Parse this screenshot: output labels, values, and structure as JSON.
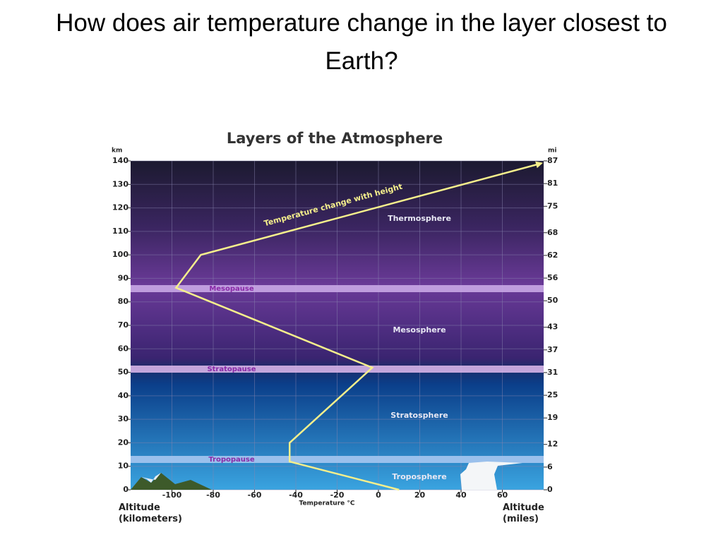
{
  "slide_title": "How does air temperature change in the layer closest to Earth?",
  "chart_data": {
    "type": "line",
    "title": "Layers of the Atmosphere",
    "x_label": "Temperature °C",
    "y_label": "Altitude (kilometers)",
    "y2_label": "Altitude (miles)",
    "y_unit": "km",
    "y2_unit": "mi",
    "x": [
      10,
      -43,
      -43,
      -3,
      -98,
      -86,
      79
    ],
    "series": [
      {
        "name": "Temperature change with height",
        "color": "#f5ef8c",
        "values": [
          0,
          12,
          20,
          52,
          86,
          100,
          139
        ]
      }
    ],
    "xlim": [
      -120,
      80
    ],
    "xticks": [
      -100,
      -80,
      -60,
      -40,
      -20,
      0,
      20,
      40,
      60
    ],
    "ylim": [
      0,
      140
    ],
    "yticks": [
      0,
      10,
      20,
      30,
      40,
      50,
      60,
      70,
      80,
      90,
      100,
      110,
      120,
      130,
      140
    ],
    "y2lim": [
      0,
      87
    ],
    "y2ticks": [
      0,
      6,
      12,
      19,
      25,
      31,
      37,
      43,
      50,
      56,
      62,
      68,
      75,
      81,
      87
    ],
    "layers": [
      "Thermosphere",
      "Mesosphere",
      "Stratosphere",
      "Troposphere"
    ],
    "boundaries": [
      "Mesopause",
      "Stratopause",
      "Tropopause"
    ],
    "grid": true
  }
}
